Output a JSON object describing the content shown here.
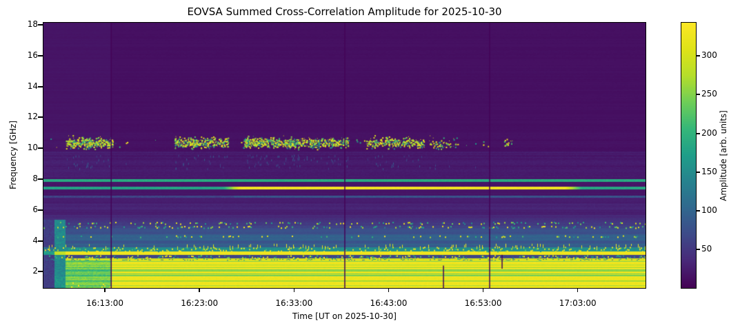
{
  "figure": {
    "title": "EOVSA Summed Cross-Correlation Amplitude for 2025-10-30",
    "xlabel": "Time [UT on 2025-10-30]",
    "ylabel": "Frequency [GHz]",
    "colorbar_label": "Amplitude [arb. units]"
  },
  "chart_data": {
    "type": "heatmap",
    "title": "EOVSA Summed Cross-Correlation Amplitude for 2025-10-30",
    "xlabel": "Time [UT on 2025-10-30]",
    "ylabel": "Frequency [GHz]",
    "x_axis": {
      "start_label": "16:06:30",
      "end_label": "17:10:10",
      "seconds_after_16UT": [
        390,
        4210
      ],
      "ticks": [
        {
          "s": 780,
          "label": "16:13:00"
        },
        {
          "s": 1380,
          "label": "16:23:00"
        },
        {
          "s": 1980,
          "label": "16:33:00"
        },
        {
          "s": 2580,
          "label": "16:43:00"
        },
        {
          "s": 3180,
          "label": "16:53:00"
        },
        {
          "s": 3780,
          "label": "17:03:00"
        }
      ]
    },
    "y_axis": {
      "range_ghz": [
        0.95,
        18.13
      ],
      "ticks": [
        2,
        4,
        6,
        8,
        10,
        12,
        14,
        16,
        18
      ]
    },
    "colorbar": {
      "label": "Amplitude [arb. units]",
      "range": [
        0,
        343
      ],
      "ticks": [
        50,
        100,
        150,
        200,
        250,
        300
      ],
      "colormap": "viridis"
    },
    "colormap_stops": [
      [
        0.0,
        [
          68,
          1,
          84
        ]
      ],
      [
        0.1,
        [
          72,
          40,
          120
        ]
      ],
      [
        0.2,
        [
          62,
          74,
          137
        ]
      ],
      [
        0.3,
        [
          49,
          104,
          142
        ]
      ],
      [
        0.4,
        [
          38,
          130,
          142
        ]
      ],
      [
        0.5,
        [
          31,
          158,
          137
        ]
      ],
      [
        0.6,
        [
          53,
          183,
          121
        ]
      ],
      [
        0.7,
        [
          110,
          206,
          88
        ]
      ],
      [
        0.8,
        [
          181,
          222,
          43
        ]
      ],
      [
        0.9,
        [
          223,
          227,
          24
        ]
      ],
      [
        1.0,
        [
          253,
          231,
          37
        ]
      ]
    ],
    "background_bands": [
      {
        "f0": 11.0,
        "f1": 18.13,
        "v": 13,
        "n": 2
      },
      {
        "f0": 9.8,
        "f1": 11.0,
        "v": 14,
        "n": 3
      },
      {
        "f0": 8.1,
        "f1": 9.8,
        "v": 22,
        "n": 6
      },
      {
        "f0": 6.95,
        "f1": 8.1,
        "v": 17,
        "n": 3
      },
      {
        "f0": 6.4,
        "f1": 6.95,
        "v": 24,
        "n": 4
      },
      {
        "f0": 6.05,
        "f1": 6.4,
        "v": 31,
        "n": 5
      },
      {
        "f0": 5.7,
        "f1": 6.05,
        "v": 26,
        "n": 4
      },
      {
        "f0": 5.45,
        "f1": 5.7,
        "v": 35,
        "n": 5
      },
      {
        "f0": 5.25,
        "f1": 5.45,
        "v": 44,
        "n": 7
      },
      {
        "f0": 5.05,
        "f1": 5.25,
        "v": 52,
        "n": 9
      },
      {
        "f0": 4.85,
        "f1": 5.05,
        "v": 60,
        "n": 9
      },
      {
        "f0": 4.45,
        "f1": 4.85,
        "v": 74,
        "n": 7
      },
      {
        "f0": 4.05,
        "f1": 4.45,
        "v": 96,
        "n": 8
      },
      {
        "f0": 3.8,
        "f1": 4.05,
        "v": 82,
        "n": 7
      },
      {
        "f0": 3.58,
        "f1": 3.8,
        "v": 94,
        "n": 8
      },
      {
        "f0": 3.32,
        "f1": 3.58,
        "v": 150,
        "n": 14
      },
      {
        "f0": 3.1,
        "f1": 3.32,
        "v": 330,
        "n": 6
      },
      {
        "f0": 2.86,
        "f1": 3.1,
        "v": 66,
        "n": 12
      },
      {
        "f0": 2.74,
        "f1": 2.86,
        "v": 298,
        "n": 14
      },
      {
        "f0": 0.95,
        "f1": 2.74,
        "v": 324,
        "n": 8,
        "stripes": true
      }
    ],
    "horizontal_lines": [
      {
        "freq_ghz": 7.91,
        "half_width": 0.075,
        "value": 188,
        "extent": "full"
      },
      {
        "freq_ghz": 7.43,
        "half_width": 0.085,
        "segments": [
          {
            "s0": 390,
            "s1": 1640,
            "value": 180
          },
          {
            "s0": 1640,
            "s1": 3700,
            "value": 332
          },
          {
            "s0": 3700,
            "s1": 4210,
            "value": 185
          }
        ]
      },
      {
        "freq_ghz": 6.85,
        "half_width": 0.06,
        "value": 82,
        "extent": "full"
      }
    ],
    "burst_clusters_10ghz": {
      "f_lo": 9.95,
      "f_hi": 10.85,
      "f_center": 10.38,
      "clusters": [
        {
          "s0": 530,
          "s1": 830,
          "dots": 340
        },
        {
          "s0": 1220,
          "s1": 1560,
          "dots": 320
        },
        {
          "s0": 1655,
          "s1": 2325,
          "dots": 650
        },
        {
          "s0": 2435,
          "s1": 2805,
          "dots": 270
        },
        {
          "s0": 2830,
          "s1": 3020,
          "dots": 55
        },
        {
          "s0": 3310,
          "s1": 3365,
          "dots": 16
        }
      ],
      "stray_dots": 45
    },
    "speckle_rows": [
      {
        "f0": 5.12,
        "f1": 5.24,
        "density": 0.22
      },
      {
        "f0": 4.86,
        "f1": 4.98,
        "density": 0.28
      },
      {
        "f0": 4.26,
        "f1": 4.36,
        "density": 0.15
      },
      {
        "f0": 3.34,
        "f1": 3.62,
        "density": 0.55,
        "dense": true
      },
      {
        "f0": 2.88,
        "f1": 3.08,
        "density": 0.5
      },
      {
        "f0": 2.76,
        "f1": 2.84,
        "density": 0.3,
        "dark": true
      }
    ],
    "data_gaps": [
      {
        "s": 820,
        "f0": 0.95,
        "f1": 18.13
      },
      {
        "s": 2302,
        "f0": 0.95,
        "f1": 18.13
      },
      {
        "s": 3221,
        "f0": 0.95,
        "f1": 18.13
      },
      {
        "s": 2928,
        "f0": 0.95,
        "f1": 2.4
      },
      {
        "s": 3300,
        "f0": 2.2,
        "f1": 3.1
      }
    ],
    "startup_columns": [
      {
        "s0": 390,
        "s1": 462,
        "f_max": 5.35,
        "value": 58
      },
      {
        "s0": 462,
        "s1": 532,
        "f_max": 5.35,
        "value": 148
      }
    ],
    "left_segment": {
      "s_end": 820,
      "below_ghz": 2.74
    }
  }
}
